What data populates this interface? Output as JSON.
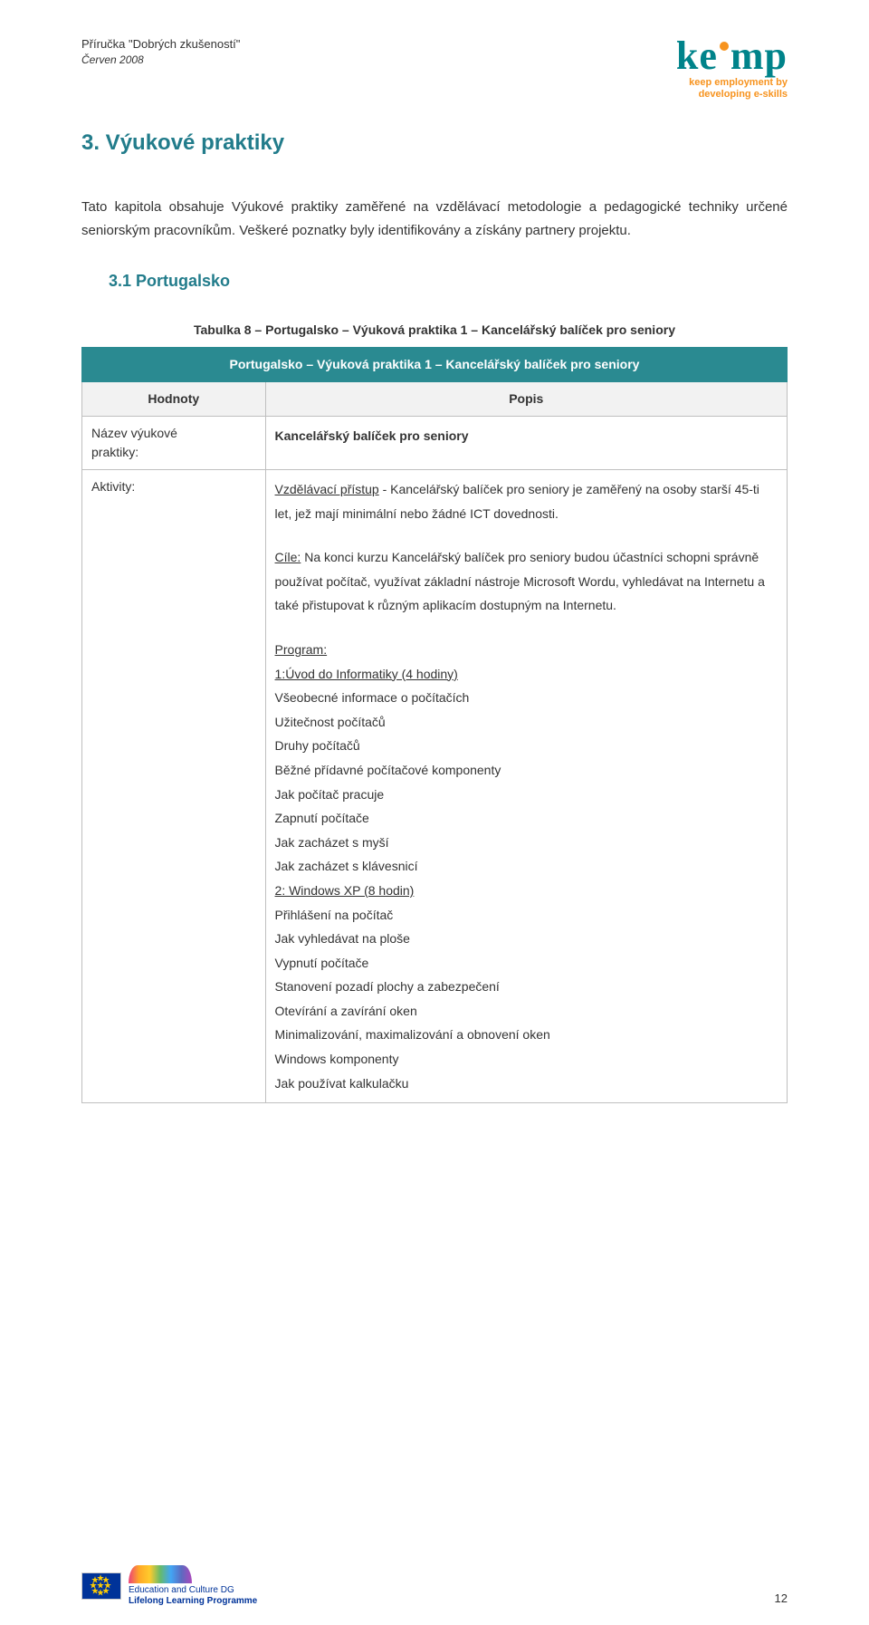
{
  "header": {
    "doc_title": "Příručka \"Dobrých zkušeností\"",
    "doc_date": "Červen 2008",
    "logo_brand": "kemp",
    "logo_tag1": "keep employment by",
    "logo_tag2": "developing e-skills"
  },
  "section": {
    "title": "3. Výukové praktiky",
    "intro": "Tato kapitola obsahuje Výukové praktiky zaměřené na vzdělávací metodologie a pedagogické techniky určené seniorským pracovníkům. Veškeré poznatky byly identifikovány a získány partnery projektu.",
    "subsection": "3.1 Portugalsko"
  },
  "table": {
    "caption": "Tabulka 8 – Portugalsko – Výuková praktika 1 – Kancelářský balíček pro seniory",
    "banner": "Portugalsko – Výuková praktika 1 – Kancelářský balíček pro seniory",
    "col1": "Hodnoty",
    "col2": "Popis",
    "row1": {
      "label_l1": "Název výukové",
      "label_l2": "praktiky:",
      "value": "Kancelářský balíček pro seniory"
    },
    "row2": {
      "label": "Aktivity:",
      "para1": "Vzdělávací přístup  - Kancelářský balíček pro seniory je zaměřený na osoby starší 45-ti let, jež mají minimální nebo žádné ICT dovednosti.",
      "para2_lead": "Cíle:",
      "para2_rest": " Na konci kurzu Kancelářský balíček pro seniory budou účastníci schopni správně používat počítač, využívat základní nástroje Microsoft Wordu, vyhledávat na Internetu a také přistupovat k různým aplikacím dostupným na Internetu.",
      "program_label": "Program:",
      "prog_items": [
        "1:Úvod do Informatiky (4 hodiny)",
        "Všeobecné informace o počítačích",
        "Užitečnost počítačů",
        "Druhy počítačů",
        "Běžné přídavné počítačové komponenty",
        "Jak počítač pracuje",
        "Zapnutí počítače",
        "Jak zacházet s myší",
        "Jak zacházet s klávesnicí",
        "2: Windows XP (8 hodin)",
        "Přihlášení na počítač",
        "Jak vyhledávat na ploše",
        "Vypnutí počítače",
        "Stanovení pozadí plochy a zabezpečení",
        "Otevírání a zavírání oken",
        "Minimalizování, maximalizování a obnovení oken",
        "Windows komponenty",
        "Jak používat kalkulačku"
      ],
      "underline_idx": [
        0,
        9
      ]
    }
  },
  "footer": {
    "llp_l1": "Education and Culture DG",
    "llp_l2": "Lifelong Learning Programme",
    "page_num": "12"
  },
  "colors": {
    "teal": "#2a8a91",
    "heading": "#227c8b",
    "orange": "#f7931e"
  }
}
